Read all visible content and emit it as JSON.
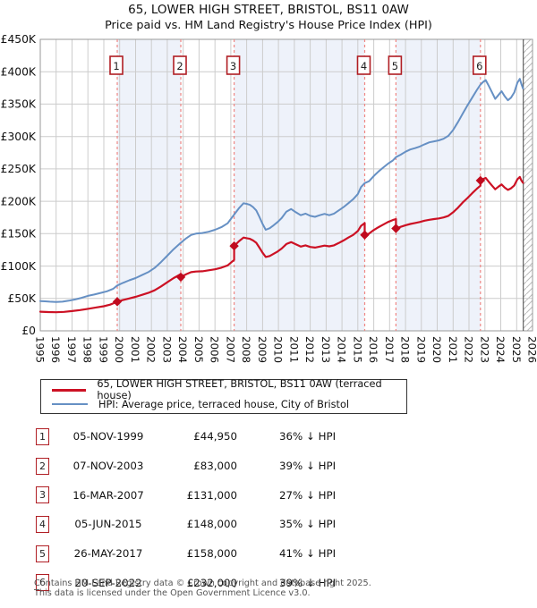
{
  "title": "65, LOWER HIGH STREET, BRISTOL, BS11 0AW",
  "subtitle": "Price paid vs. HM Land Registry's House Price Index (HPI)",
  "legend": {
    "items": [
      {
        "id": "price-paid",
        "label": "65, LOWER HIGH STREET, BRISTOL, BS11 0AW (terraced house)",
        "color": "#cc1124",
        "thickness": 3
      },
      {
        "id": "hpi",
        "label": "HPI: Average price, terraced house, City of Bristol",
        "color": "#6690c4",
        "thickness": 2
      }
    ]
  },
  "chart_data": {
    "type": "line",
    "x_axis": {
      "min": 1995,
      "max": 2026,
      "tick_labels": [
        "1995",
        "1996",
        "1997",
        "1998",
        "1999",
        "2000",
        "2001",
        "2002",
        "2003",
        "2004",
        "2005",
        "2006",
        "2007",
        "2008",
        "2009",
        "2010",
        "2011",
        "2012",
        "2013",
        "2014",
        "2015",
        "2016",
        "2017",
        "2018",
        "2019",
        "2020",
        "2021",
        "2022",
        "2023",
        "2024",
        "2025",
        "2026"
      ]
    },
    "y_axis": {
      "min_k": 0,
      "max_k": 450,
      "step_k": 50,
      "tick_labels": [
        "£0",
        "£50K",
        "£100K",
        "£150K",
        "£200K",
        "£250K",
        "£300K",
        "£350K",
        "£400K",
        "£450K"
      ]
    },
    "colors": {
      "band": "#eef2fa",
      "grid": "#cccccc",
      "border": "#999999",
      "event_line": "#ef8784",
      "marker": "#c00a1e",
      "box_border": "#b01e24",
      "hatch": "#bbbbbb",
      "future_line": "#444444"
    },
    "future_start": 2025.42,
    "shaded_bands": [
      [
        1999.85,
        2003.85
      ],
      [
        2007.21,
        2015.43
      ],
      [
        2017.4,
        2022.72
      ]
    ],
    "sales": [
      {
        "n": "1",
        "year": 1999.85,
        "price_k": 44.95
      },
      {
        "n": "2",
        "year": 2003.85,
        "price_k": 83
      },
      {
        "n": "3",
        "year": 2007.21,
        "price_k": 131
      },
      {
        "n": "4",
        "year": 2015.43,
        "price_k": 148
      },
      {
        "n": "5",
        "year": 2017.4,
        "price_k": 158
      },
      {
        "n": "6",
        "year": 2022.72,
        "price_k": 232
      }
    ],
    "series": [
      {
        "id": "hpi",
        "name": "HPI: Average price, terraced house, City of Bristol",
        "color": "#6690c4",
        "width": 2,
        "points": [
          [
            1995.0,
            46
          ],
          [
            1995.3,
            45.5
          ],
          [
            1995.6,
            45
          ],
          [
            1996.0,
            44.6
          ],
          [
            1996.4,
            45
          ],
          [
            1996.8,
            46.5
          ],
          [
            1997.2,
            48.5
          ],
          [
            1997.6,
            51
          ],
          [
            1998.0,
            54
          ],
          [
            1998.4,
            56
          ],
          [
            1998.8,
            58.5
          ],
          [
            1999.2,
            61
          ],
          [
            1999.6,
            65
          ],
          [
            1999.85,
            70
          ],
          [
            2000.2,
            74
          ],
          [
            2000.6,
            78
          ],
          [
            2001.0,
            81.5
          ],
          [
            2001.4,
            86
          ],
          [
            2001.8,
            90.5
          ],
          [
            2002.2,
            97
          ],
          [
            2002.6,
            106
          ],
          [
            2003.0,
            116
          ],
          [
            2003.4,
            126
          ],
          [
            2003.85,
            136
          ],
          [
            2004.2,
            143
          ],
          [
            2004.5,
            148
          ],
          [
            2004.8,
            150
          ],
          [
            2005.2,
            151
          ],
          [
            2005.6,
            153
          ],
          [
            2006.0,
            156
          ],
          [
            2006.4,
            160
          ],
          [
            2006.8,
            166
          ],
          [
            2007.21,
            179.5
          ],
          [
            2007.5,
            189
          ],
          [
            2007.8,
            197
          ],
          [
            2008.0,
            196
          ],
          [
            2008.2,
            194.5
          ],
          [
            2008.4,
            191
          ],
          [
            2008.6,
            186
          ],
          [
            2008.8,
            176
          ],
          [
            2009.0,
            165
          ],
          [
            2009.2,
            156
          ],
          [
            2009.45,
            158.5
          ],
          [
            2009.7,
            163
          ],
          [
            2009.95,
            168
          ],
          [
            2010.2,
            174
          ],
          [
            2010.5,
            184
          ],
          [
            2010.8,
            188
          ],
          [
            2011.1,
            183
          ],
          [
            2011.4,
            178.5
          ],
          [
            2011.7,
            181
          ],
          [
            2012.0,
            177.5
          ],
          [
            2012.3,
            176
          ],
          [
            2012.6,
            178.5
          ],
          [
            2012.9,
            180.5
          ],
          [
            2013.2,
            178.5
          ],
          [
            2013.5,
            181
          ],
          [
            2013.8,
            186
          ],
          [
            2014.1,
            191
          ],
          [
            2014.4,
            197
          ],
          [
            2014.7,
            203
          ],
          [
            2015.0,
            211
          ],
          [
            2015.2,
            222
          ],
          [
            2015.43,
            228
          ],
          [
            2015.7,
            231
          ],
          [
            2016.0,
            239
          ],
          [
            2016.3,
            246
          ],
          [
            2016.6,
            252
          ],
          [
            2016.9,
            258
          ],
          [
            2017.2,
            263
          ],
          [
            2017.4,
            268
          ],
          [
            2017.7,
            272
          ],
          [
            2018.0,
            276.5
          ],
          [
            2018.3,
            280
          ],
          [
            2018.6,
            282
          ],
          [
            2018.9,
            284.5
          ],
          [
            2019.2,
            288
          ],
          [
            2019.5,
            291
          ],
          [
            2019.8,
            292.5
          ],
          [
            2020.1,
            294
          ],
          [
            2020.4,
            296.5
          ],
          [
            2020.7,
            301
          ],
          [
            2021.0,
            310
          ],
          [
            2021.3,
            322
          ],
          [
            2021.6,
            335
          ],
          [
            2021.9,
            348
          ],
          [
            2022.2,
            360
          ],
          [
            2022.5,
            372
          ],
          [
            2022.72,
            380
          ],
          [
            2022.9,
            384.5
          ],
          [
            2023.05,
            387
          ],
          [
            2023.25,
            378
          ],
          [
            2023.45,
            368
          ],
          [
            2023.65,
            358
          ],
          [
            2023.85,
            364
          ],
          [
            2024.05,
            370
          ],
          [
            2024.25,
            362
          ],
          [
            2024.45,
            356
          ],
          [
            2024.65,
            360
          ],
          [
            2024.85,
            368
          ],
          [
            2025.05,
            383
          ],
          [
            2025.2,
            389
          ],
          [
            2025.3,
            381
          ],
          [
            2025.4,
            374
          ]
        ]
      },
      {
        "id": "price-paid",
        "name": "65, LOWER HIGH STREET, BRISTOL, BS11 0AW (terraced house)",
        "color": "#cc1124",
        "width": 2.2,
        "points": [
          [
            1995.0,
            29.5
          ],
          [
            1995.5,
            29
          ],
          [
            1996.0,
            28.7
          ],
          [
            1996.5,
            29.3
          ],
          [
            1997.0,
            30.5
          ],
          [
            1997.5,
            32
          ],
          [
            1998.0,
            34
          ],
          [
            1998.5,
            36
          ],
          [
            1999.0,
            38
          ],
          [
            1999.4,
            40.5
          ],
          [
            1999.85,
            44.95
          ],
          [
            2000.2,
            47.5
          ],
          [
            2000.6,
            50
          ],
          [
            2001.0,
            52.5
          ],
          [
            2001.4,
            55.5
          ],
          [
            2001.8,
            58.5
          ],
          [
            2002.2,
            62.5
          ],
          [
            2002.6,
            68.5
          ],
          [
            2003.0,
            75
          ],
          [
            2003.4,
            81.5
          ],
          [
            2003.85,
            87.5
          ],
          [
            2003.85,
            83
          ],
          [
            2004.2,
            87.5
          ],
          [
            2004.5,
            90.5
          ],
          [
            2004.8,
            91.5
          ],
          [
            2005.2,
            92
          ],
          [
            2005.6,
            93.5
          ],
          [
            2006.0,
            95
          ],
          [
            2006.4,
            97.5
          ],
          [
            2006.8,
            101
          ],
          [
            2007.21,
            109.5
          ],
          [
            2007.21,
            131
          ],
          [
            2007.5,
            138
          ],
          [
            2007.8,
            144
          ],
          [
            2008.0,
            143
          ],
          [
            2008.2,
            142
          ],
          [
            2008.4,
            139.5
          ],
          [
            2008.6,
            136
          ],
          [
            2008.8,
            128.5
          ],
          [
            2009.0,
            120.5
          ],
          [
            2009.2,
            114
          ],
          [
            2009.45,
            115.5
          ],
          [
            2009.7,
            119
          ],
          [
            2009.95,
            122.5
          ],
          [
            2010.2,
            127
          ],
          [
            2010.5,
            134
          ],
          [
            2010.8,
            137
          ],
          [
            2011.1,
            133.5
          ],
          [
            2011.4,
            130
          ],
          [
            2011.7,
            132
          ],
          [
            2012.0,
            129.5
          ],
          [
            2012.3,
            128.5
          ],
          [
            2012.6,
            130
          ],
          [
            2012.9,
            131.5
          ],
          [
            2013.2,
            130.5
          ],
          [
            2013.5,
            132
          ],
          [
            2013.8,
            135.5
          ],
          [
            2014.1,
            139.5
          ],
          [
            2014.4,
            144
          ],
          [
            2014.7,
            148
          ],
          [
            2015.0,
            154
          ],
          [
            2015.2,
            162
          ],
          [
            2015.43,
            166.4
          ],
          [
            2015.43,
            148
          ],
          [
            2015.7,
            150
          ],
          [
            2016.0,
            155.5
          ],
          [
            2016.3,
            160
          ],
          [
            2016.6,
            164
          ],
          [
            2016.9,
            168
          ],
          [
            2017.2,
            171
          ],
          [
            2017.4,
            172.5
          ],
          [
            2017.4,
            158
          ],
          [
            2017.7,
            160.5
          ],
          [
            2018.0,
            163
          ],
          [
            2018.3,
            165
          ],
          [
            2018.6,
            166.5
          ],
          [
            2018.9,
            168
          ],
          [
            2019.2,
            170
          ],
          [
            2019.5,
            171.5
          ],
          [
            2019.8,
            172.5
          ],
          [
            2020.1,
            173.5
          ],
          [
            2020.4,
            175
          ],
          [
            2020.7,
            177.5
          ],
          [
            2021.0,
            183
          ],
          [
            2021.3,
            190
          ],
          [
            2021.6,
            198
          ],
          [
            2021.9,
            205
          ],
          [
            2022.2,
            212.5
          ],
          [
            2022.5,
            219.5
          ],
          [
            2022.72,
            224
          ],
          [
            2022.72,
            232
          ],
          [
            2022.9,
            234.5
          ],
          [
            2023.05,
            236
          ],
          [
            2023.25,
            230
          ],
          [
            2023.45,
            224
          ],
          [
            2023.65,
            218.5
          ],
          [
            2023.85,
            222.5
          ],
          [
            2024.05,
            226
          ],
          [
            2024.25,
            221
          ],
          [
            2024.45,
            217.5
          ],
          [
            2024.65,
            220
          ],
          [
            2024.85,
            224.5
          ],
          [
            2025.05,
            234
          ],
          [
            2025.2,
            237.5
          ],
          [
            2025.3,
            232
          ],
          [
            2025.4,
            228.5
          ]
        ]
      }
    ]
  },
  "table": {
    "rows": [
      {
        "n": "1",
        "date": "05-NOV-1999",
        "price": "£44,950",
        "vs_hpi": "36% ↓ HPI"
      },
      {
        "n": "2",
        "date": "07-NOV-2003",
        "price": "£83,000",
        "vs_hpi": "39% ↓ HPI"
      },
      {
        "n": "3",
        "date": "16-MAR-2007",
        "price": "£131,000",
        "vs_hpi": "27% ↓ HPI"
      },
      {
        "n": "4",
        "date": "05-JUN-2015",
        "price": "£148,000",
        "vs_hpi": "35% ↓ HPI"
      },
      {
        "n": "5",
        "date": "26-MAY-2017",
        "price": "£158,000",
        "vs_hpi": "41% ↓ HPI"
      },
      {
        "n": "6",
        "date": "20-SEP-2022",
        "price": "£232,000",
        "vs_hpi": "39% ↓ HPI"
      }
    ]
  },
  "footer": {
    "line1": "Contains HM Land Registry data © Crown copyright and database right 2025.",
    "line2": "This data is licensed under the Open Government Licence v3.0."
  }
}
